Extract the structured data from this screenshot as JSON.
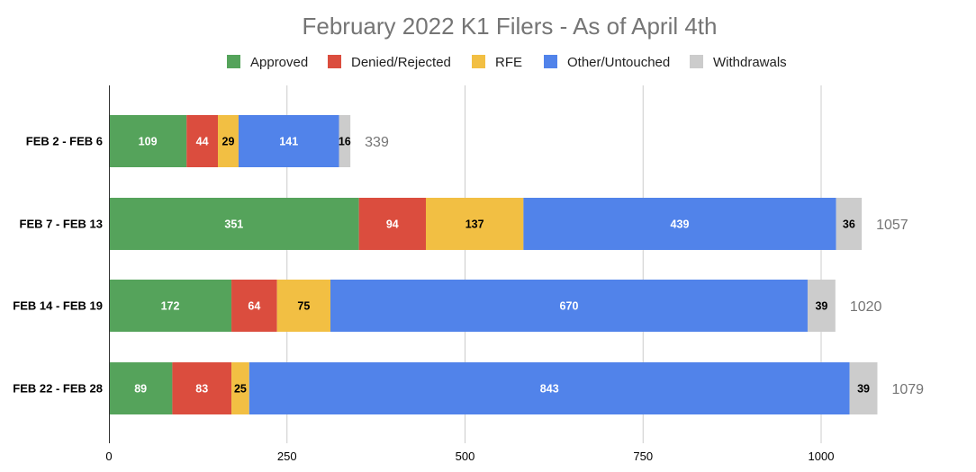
{
  "chart_data": {
    "type": "bar",
    "orientation": "horizontal",
    "stacked": true,
    "title": "February 2022 K1 Filers - As of April 4th",
    "categories": [
      "FEB 2 - FEB 6",
      "FEB 7 - FEB 13",
      "FEB 14 - FEB 19",
      "FEB 22 - FEB 28"
    ],
    "series": [
      {
        "name": "Approved",
        "color": "#55a35b",
        "label_color": "#ffffff",
        "values": [
          109,
          351,
          172,
          89
        ]
      },
      {
        "name": "Denied/Rejected",
        "color": "#db4d3e",
        "label_color": "#ffffff",
        "values": [
          44,
          94,
          64,
          83
        ]
      },
      {
        "name": "RFE",
        "color": "#f2bf43",
        "label_color": "#000000",
        "values": [
          29,
          137,
          75,
          25
        ]
      },
      {
        "name": "Other/Untouched",
        "color": "#5183ea",
        "label_color": "#ffffff",
        "values": [
          141,
          439,
          670,
          843
        ]
      },
      {
        "name": "Withdrawals",
        "color": "#cccccc",
        "label_color": "#000000",
        "values": [
          16,
          36,
          39,
          39
        ]
      }
    ],
    "totals": [
      339,
      1057,
      1020,
      1079
    ],
    "xlim": [
      0,
      1000
    ],
    "xticks": [
      0,
      250,
      500,
      750,
      1000
    ],
    "grid": true,
    "legend_position": "top"
  }
}
